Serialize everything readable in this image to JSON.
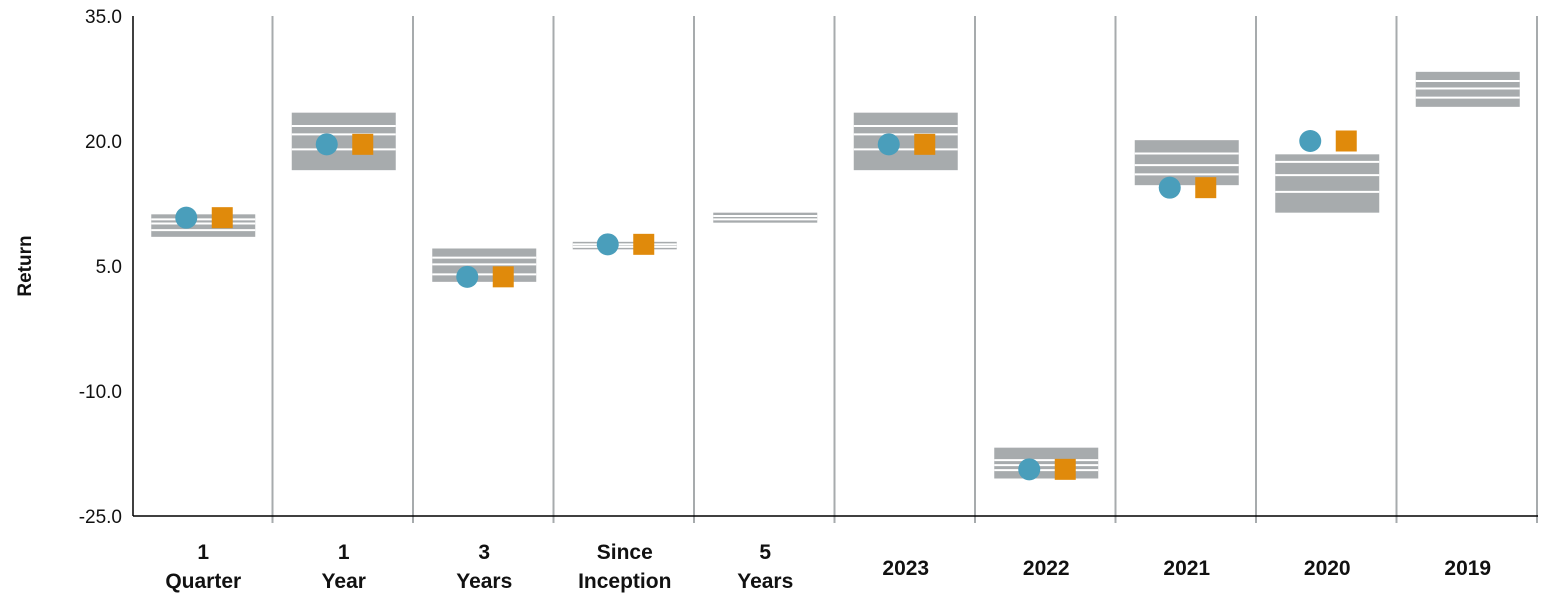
{
  "chart_data": {
    "type": "floating-bar",
    "ylabel": "Return",
    "ylim": [
      -25,
      35
    ],
    "yticks": [
      "35.0",
      "20.0",
      "5.0",
      "-10.0",
      "-25.0"
    ],
    "yticks_values": [
      35,
      20,
      5,
      -10,
      -25
    ],
    "colors": {
      "range_bar": "#a7abad",
      "divider": "#a7abad",
      "separator_line": "#ffffff",
      "circle": "#4a9ebb",
      "square": "#e08a0b",
      "axis": "#000000"
    },
    "categories": [
      {
        "label": [
          "1",
          "Quarter"
        ],
        "range": [
          8.5,
          11.2
        ],
        "lines": [
          9.3,
          10.1,
          10.6
        ],
        "circle": 10.8,
        "square": 10.8
      },
      {
        "label": [
          "1",
          "Year"
        ],
        "range": [
          16.5,
          23.4
        ],
        "lines": [
          19.0,
          20.8,
          21.8
        ],
        "circle": 19.6,
        "square": 19.6
      },
      {
        "label": [
          "3",
          "Years"
        ],
        "range": [
          3.1,
          7.1
        ],
        "lines": [
          4.0,
          5.2,
          6.0
        ],
        "circle": 3.7,
        "square": 3.7
      },
      {
        "label": [
          "Since",
          "Inception"
        ],
        "range": [
          7.0,
          7.9
        ],
        "lines": [
          7.3,
          7.6
        ],
        "circle": 7.6,
        "square": 7.6
      },
      {
        "label": [
          "5",
          "Years"
        ],
        "range": [
          10.2,
          11.4
        ],
        "lines": [
          10.6,
          11.0
        ],
        "circle": null,
        "square": null
      },
      {
        "label": [
          "2023"
        ],
        "range": [
          16.5,
          23.4
        ],
        "lines": [
          19.0,
          20.8,
          21.8
        ],
        "circle": 19.6,
        "square": 19.6
      },
      {
        "label": [
          "2022"
        ],
        "range": [
          -20.5,
          -16.8
        ],
        "lines": [
          -19.5,
          -18.9,
          -18.3
        ],
        "circle": -19.4,
        "square": -19.4
      },
      {
        "label": [
          "2021"
        ],
        "range": [
          14.7,
          20.1
        ],
        "lines": [
          16.0,
          17.1,
          18.5
        ],
        "circle": 14.4,
        "square": 14.4
      },
      {
        "label": [
          "2020"
        ],
        "range": [
          11.4,
          18.4
        ],
        "lines": [
          13.9,
          15.9,
          17.5
        ],
        "circle": 20.0,
        "square": 20.0
      },
      {
        "label": [
          "2019"
        ],
        "range": [
          24.1,
          28.3
        ],
        "lines": [
          25.2,
          26.3,
          27.2
        ],
        "circle": null,
        "square": null
      }
    ]
  }
}
